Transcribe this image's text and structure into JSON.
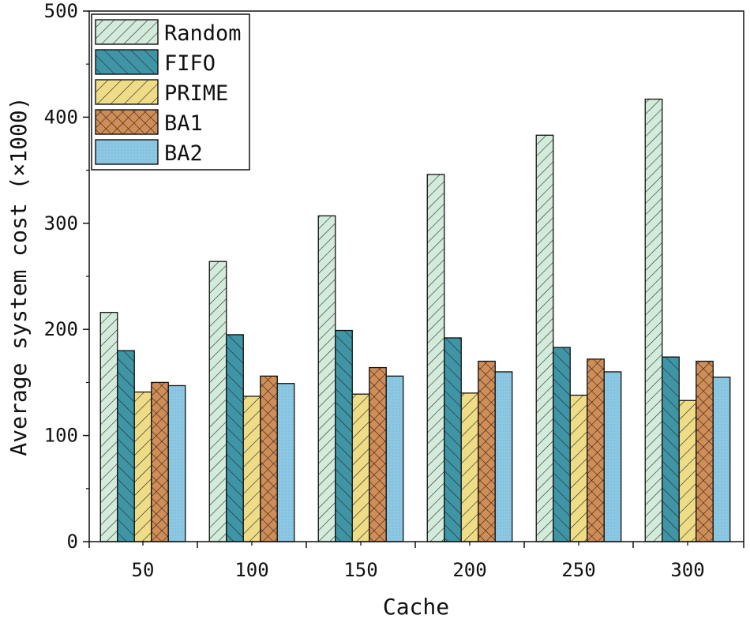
{
  "chart_data": {
    "type": "bar",
    "title": "",
    "xlabel": "Cache",
    "ylabel": "Average system cost (×1000)",
    "categories": [
      "50",
      "100",
      "150",
      "200",
      "250",
      "300"
    ],
    "ylim": [
      0,
      500
    ],
    "yticks": [
      0,
      100,
      200,
      300,
      400,
      500
    ],
    "yticklabels": [
      "0",
      "100",
      "200",
      "300",
      "400",
      "500"
    ],
    "grid": false,
    "legend_position": "top-left",
    "series": [
      {
        "name": "Random",
        "values": [
          216,
          264,
          307,
          346,
          383,
          417
        ],
        "color": "#cfe7d6",
        "pattern": "diag-right"
      },
      {
        "name": "FIFO",
        "values": [
          180,
          195,
          199,
          192,
          183,
          174
        ],
        "color": "#3f95a6",
        "pattern": "diag-left"
      },
      {
        "name": "PRIME",
        "values": [
          141,
          137,
          139,
          140,
          138,
          133
        ],
        "color": "#ecd981",
        "pattern": "diag-right-wide"
      },
      {
        "name": "BA1",
        "values": [
          150,
          156,
          164,
          170,
          172,
          170
        ],
        "color": "#cf8d58",
        "pattern": "crosshatch"
      },
      {
        "name": "BA2",
        "values": [
          147,
          149,
          156,
          160,
          160,
          155
        ],
        "color": "#8dc8e3",
        "pattern": "dots"
      }
    ]
  }
}
